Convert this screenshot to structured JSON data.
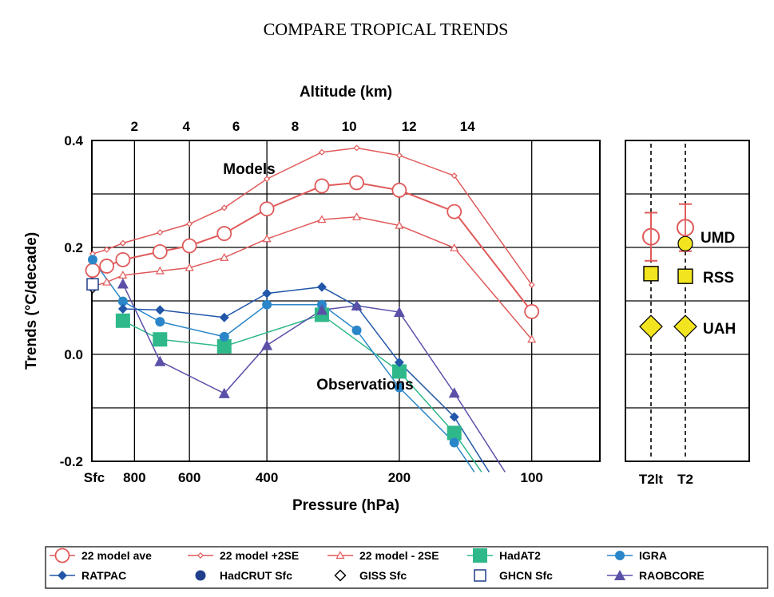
{
  "page_title": "COMPARE TROPICAL TRENDS",
  "chart_data": {
    "type": "line",
    "ylabel": "Trends (°C/decade)",
    "xlabel": "Pressure (hPa)",
    "top_axis_label": "Altitude (km)",
    "ylim": [
      -0.2,
      0.4
    ],
    "y_ticks": [
      "0.4",
      "0.2",
      "0.0",
      "-0.2"
    ],
    "y_tick_values": [
      0.4,
      0.2,
      0.0,
      -0.2
    ],
    "x_scale": "log",
    "x_range_hPa": [
      1000,
      70
    ],
    "surface_label": "Sfc",
    "x_ticks": [
      {
        "label": "800",
        "value": 800
      },
      {
        "label": "600",
        "value": 600
      },
      {
        "label": "400",
        "value": 400
      },
      {
        "label": "200",
        "value": 200
      },
      {
        "label": "100",
        "value": 100
      }
    ],
    "alt_ticks": [
      {
        "label": "2",
        "hPa": 800
      },
      {
        "label": "4",
        "hPa": 610
      },
      {
        "label": "6",
        "hPa": 470
      },
      {
        "label": "8",
        "hPa": 345
      },
      {
        "label": "10",
        "hPa": 260
      },
      {
        "label": "12",
        "hPa": 190
      },
      {
        "label": "14",
        "hPa": 140
      }
    ],
    "annotations": {
      "models": "Models",
      "observations": "Observations"
    },
    "series": [
      {
        "name": "22 model ave",
        "color": "#e05a5a",
        "marker": "open-circle",
        "points": [
          [
            "Sfc",
            0.157
          ],
          [
            925,
            0.165
          ],
          [
            850,
            0.177
          ],
          [
            700,
            0.192
          ],
          [
            600,
            0.203
          ],
          [
            500,
            0.226
          ],
          [
            400,
            0.272
          ],
          [
            300,
            0.315
          ],
          [
            250,
            0.321
          ],
          [
            200,
            0.307
          ],
          [
            150,
            0.267
          ],
          [
            100,
            0.08
          ]
        ]
      },
      {
        "name": "22 model +2SE",
        "color": "#e05a5a",
        "marker": "small-diamond",
        "points": [
          [
            "Sfc",
            0.188
          ],
          [
            925,
            0.196
          ],
          [
            850,
            0.208
          ],
          [
            700,
            0.228
          ],
          [
            600,
            0.244
          ],
          [
            500,
            0.274
          ],
          [
            400,
            0.328
          ],
          [
            300,
            0.378
          ],
          [
            250,
            0.386
          ],
          [
            200,
            0.372
          ],
          [
            150,
            0.334
          ],
          [
            100,
            0.13
          ]
        ]
      },
      {
        "name": "22 model - 2SE",
        "color": "#e05a5a",
        "marker": "open-triangle",
        "points": [
          [
            "Sfc",
            0.127
          ],
          [
            925,
            0.135
          ],
          [
            850,
            0.148
          ],
          [
            700,
            0.156
          ],
          [
            600,
            0.162
          ],
          [
            500,
            0.181
          ],
          [
            400,
            0.216
          ],
          [
            300,
            0.252
          ],
          [
            250,
            0.257
          ],
          [
            200,
            0.241
          ],
          [
            150,
            0.199
          ],
          [
            100,
            0.028
          ]
        ]
      },
      {
        "name": "HadAT2",
        "color": "#2fb88a",
        "marker": "filled-square",
        "points": [
          [
            850,
            0.063
          ],
          [
            700,
            0.028
          ],
          [
            500,
            0.015
          ],
          [
            300,
            0.074
          ],
          [
            200,
            -0.032
          ],
          [
            150,
            -0.147
          ],
          [
            130,
            -0.22
          ]
        ]
      },
      {
        "name": "IGRA",
        "color": "#2a86c8",
        "marker": "filled-circle",
        "points": [
          [
            "Sfc",
            0.177
          ],
          [
            850,
            0.099
          ],
          [
            700,
            0.061
          ],
          [
            500,
            0.033
          ],
          [
            400,
            0.093
          ],
          [
            300,
            0.093
          ],
          [
            250,
            0.045
          ],
          [
            200,
            -0.062
          ],
          [
            150,
            -0.165
          ],
          [
            135,
            -0.22
          ]
        ]
      },
      {
        "name": "RATPAC",
        "color": "#2256a8",
        "marker": "filled-diamond",
        "points": [
          [
            850,
            0.085
          ],
          [
            700,
            0.083
          ],
          [
            500,
            0.069
          ],
          [
            400,
            0.114
          ],
          [
            300,
            0.126
          ],
          [
            250,
            0.09
          ],
          [
            200,
            -0.015
          ],
          [
            150,
            -0.117
          ],
          [
            125,
            -0.22
          ]
        ]
      },
      {
        "name": "RAOBCORE",
        "color": "#5a50a8",
        "marker": "filled-triangle",
        "points": [
          [
            850,
            0.132
          ],
          [
            700,
            -0.013
          ],
          [
            500,
            -0.073
          ],
          [
            400,
            0.017
          ],
          [
            300,
            0.083
          ],
          [
            250,
            0.091
          ],
          [
            200,
            0.079
          ],
          [
            150,
            -0.072
          ],
          [
            115,
            -0.22
          ]
        ]
      },
      {
        "name": "HadCRUT Sfc",
        "color": "#1f3f8a",
        "marker": "filled-circle-dark",
        "points": [
          [
            "Sfc",
            0.127
          ]
        ]
      },
      {
        "name": "GISS Sfc",
        "color": "#000000",
        "marker": "open-diamond",
        "points": [
          [
            "Sfc",
            0.125
          ]
        ]
      },
      {
        "name": "GHCN Sfc",
        "color": "#1f3f8a",
        "marker": "open-square",
        "points": [
          [
            "Sfc",
            0.131
          ]
        ]
      }
    ]
  },
  "satellite_panel": {
    "columns": [
      "T2lt",
      "T2"
    ],
    "labels": [
      "UMD",
      "RSS",
      "UAH"
    ],
    "model_t2lt": {
      "value": 0.22,
      "low": 0.175,
      "high": 0.265
    },
    "model_t2": {
      "value": 0.237,
      "low": 0.193,
      "high": 0.281
    },
    "points": [
      {
        "label": "UMD",
        "column": "T2",
        "value": 0.207,
        "marker": "circle",
        "color": "#f2e41f"
      },
      {
        "label": "RSS",
        "column": "T2lt",
        "value": 0.151,
        "marker": "square",
        "color": "#f2e41f"
      },
      {
        "label": "RSS",
        "column": "T2",
        "value": 0.146,
        "marker": "square",
        "color": "#f2e41f"
      },
      {
        "label": "UAH",
        "column": "T2lt",
        "value": 0.052,
        "marker": "diamond",
        "color": "#f2e41f"
      },
      {
        "label": "UAH",
        "column": "T2",
        "value": 0.052,
        "marker": "diamond",
        "color": "#f2e41f"
      }
    ]
  },
  "legend": [
    {
      "name": "22 model ave",
      "marker": "open-circle",
      "color": "#e05a5a",
      "line": true
    },
    {
      "name": "22 model +2SE",
      "marker": "small-diamond",
      "color": "#e05a5a",
      "line": true
    },
    {
      "name": "22 model - 2SE",
      "marker": "open-triangle",
      "color": "#e05a5a",
      "line": true
    },
    {
      "name": "HadAT2",
      "marker": "filled-square",
      "color": "#2fb88a",
      "line": true
    },
    {
      "name": "IGRA",
      "marker": "filled-circle",
      "color": "#2a86c8",
      "line": true
    },
    {
      "name": "RATPAC",
      "marker": "filled-diamond",
      "color": "#2256a8",
      "line": true
    },
    {
      "name": "HadCRUT Sfc",
      "marker": "filled-circle-dark",
      "color": "#1f3f8a",
      "line": false
    },
    {
      "name": "GISS Sfc",
      "marker": "open-diamond",
      "color": "#000000",
      "line": false
    },
    {
      "name": "GHCN Sfc",
      "marker": "open-square",
      "color": "#1f3f8a",
      "line": false
    },
    {
      "name": "RAOBCORE",
      "marker": "filled-triangle",
      "color": "#5a50a8",
      "line": true
    }
  ]
}
